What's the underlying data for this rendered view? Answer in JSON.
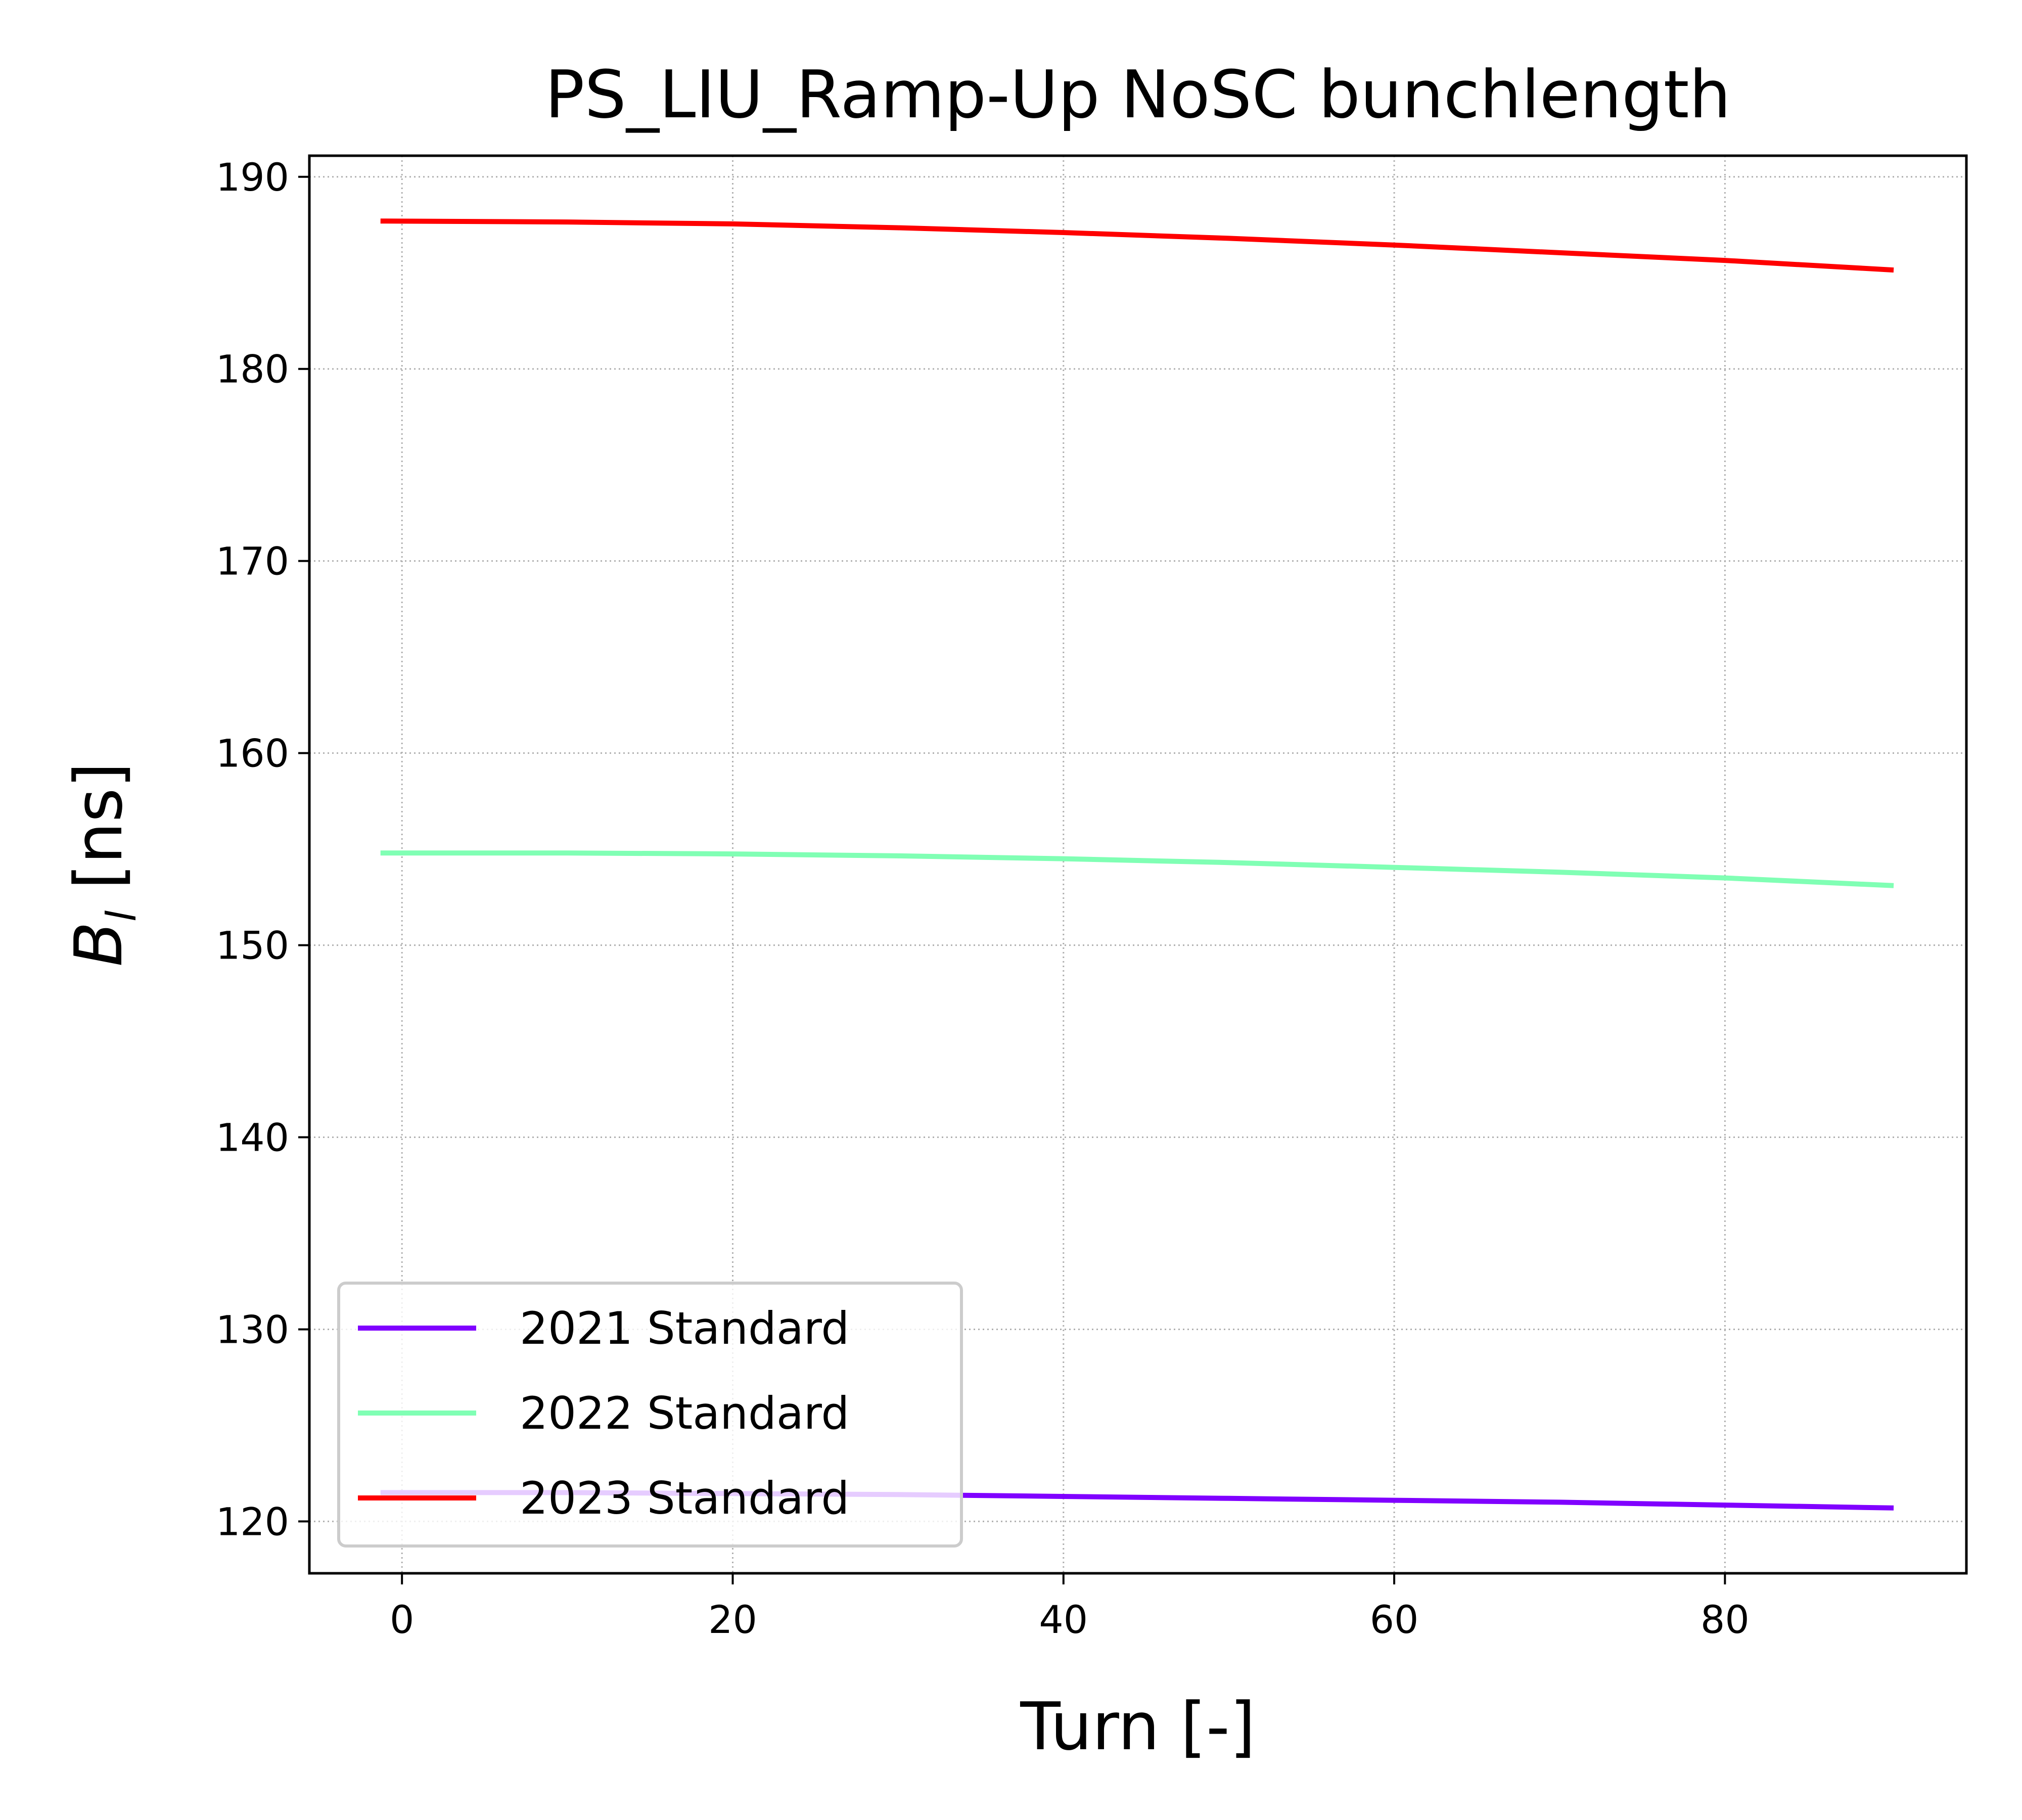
{
  "chart_data": {
    "type": "line",
    "title": "PS_LIU_Ramp-Up NoSC bunchlength",
    "xlabel": "Turn [-]",
    "ylabel_main": "B",
    "ylabel_sub": "l",
    "ylabel_unit": " [ns]",
    "xlim": [
      -5.6,
      94.6
    ],
    "ylim": [
      117.3,
      191.1
    ],
    "xticks": [
      0,
      20,
      40,
      60,
      80
    ],
    "yticks": [
      120,
      130,
      140,
      150,
      160,
      170,
      180,
      190
    ],
    "grid": true,
    "legend_position": "lower-left",
    "series": [
      {
        "name": "2021 Standard",
        "color": "#8000ff",
        "x": [
          -1.3,
          10,
          20,
          30,
          40,
          50,
          60,
          70,
          80,
          90.2
        ],
        "y": [
          121.5,
          121.5,
          121.45,
          121.4,
          121.3,
          121.2,
          121.1,
          121.0,
          120.85,
          120.7
        ]
      },
      {
        "name": "2022 Standard",
        "color": "#80ffb4",
        "x": [
          -1.3,
          10,
          20,
          30,
          40,
          50,
          60,
          70,
          80,
          90.2
        ],
        "y": [
          154.8,
          154.8,
          154.75,
          154.65,
          154.5,
          154.3,
          154.05,
          153.8,
          153.5,
          153.1
        ]
      },
      {
        "name": "2023 Standard",
        "color": "#ff0000",
        "x": [
          -1.3,
          10,
          20,
          30,
          40,
          50,
          60,
          70,
          80,
          90.2
        ],
        "y": [
          187.7,
          187.65,
          187.55,
          187.35,
          187.1,
          186.8,
          186.45,
          186.05,
          185.65,
          185.15
        ]
      }
    ]
  }
}
